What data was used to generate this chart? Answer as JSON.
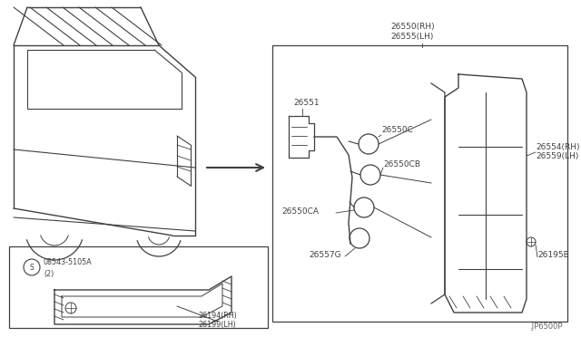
{
  "bg_color": "#ffffff",
  "line_color": "#404040",
  "text_color": "#404040",
  "fig_width": 6.4,
  "fig_height": 3.72,
  "footnote": ".JP6500P",
  "label_26550_rh": "26550(RH)",
  "label_26555_lh": "26555(LH)",
  "label_26551": "26551",
  "label_26550c": "26550C",
  "label_26550cb": "26550CB",
  "label_26550ca": "26550CA",
  "label_26557g": "26557G",
  "label_26554_rh": "26554(RH)",
  "label_26559_lh": "26559(LH)",
  "label_26195b": "26195B",
  "label_26194_rh": "26194(RH)",
  "label_26199_lh": "26199(LH)",
  "label_screw": "08543-5105A",
  "label_screw2": "(2)"
}
